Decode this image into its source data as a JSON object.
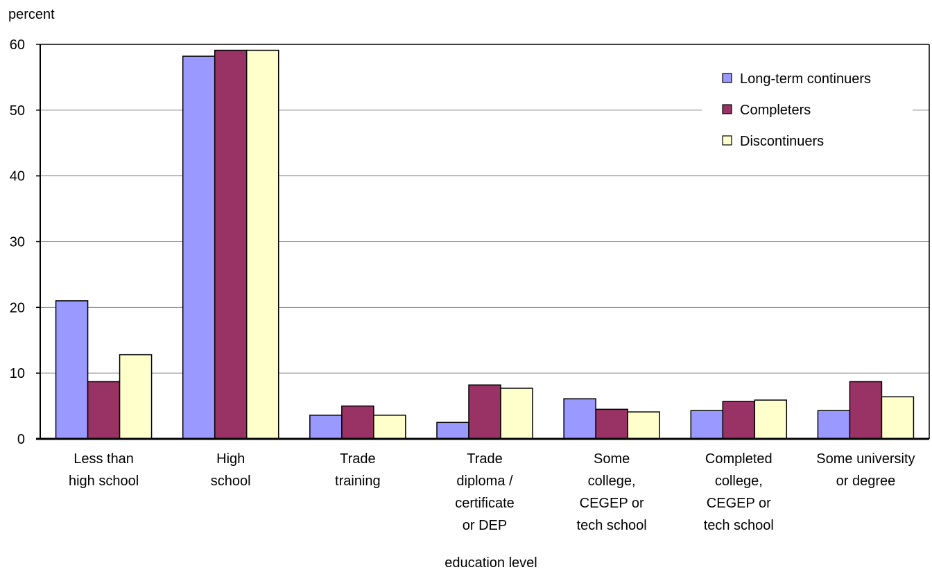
{
  "chart_data": {
    "type": "bar",
    "ylabel": "percent",
    "xlabel": "education level",
    "ylim": [
      0,
      60
    ],
    "yticks": [
      0,
      10,
      20,
      30,
      40,
      50,
      60
    ],
    "grid": true,
    "legend_position": "top-right",
    "categories": [
      [
        "Less than",
        "high school"
      ],
      [
        "High",
        "school"
      ],
      [
        "Trade",
        "training"
      ],
      [
        "Trade",
        "diploma /",
        "certificate",
        "or DEP"
      ],
      [
        "Some",
        "college,",
        "CEGEP or",
        "tech school"
      ],
      [
        "Completed",
        "college,",
        "CEGEP or",
        "tech school"
      ],
      [
        "Some university",
        "or degree"
      ]
    ],
    "series": [
      {
        "name": "Long-term continuers",
        "color": "#9999ff",
        "values": [
          21,
          58.2,
          3.6,
          2.5,
          6.1,
          4.3,
          4.3
        ]
      },
      {
        "name": "Completers",
        "color": "#993366",
        "values": [
          8.7,
          59.1,
          5.0,
          8.2,
          4.5,
          5.7,
          8.7
        ]
      },
      {
        "name": "Discontinuers",
        "color": "#ffffcc",
        "values": [
          12.8,
          59.1,
          3.6,
          7.7,
          4.1,
          5.9,
          6.4
        ]
      }
    ]
  }
}
